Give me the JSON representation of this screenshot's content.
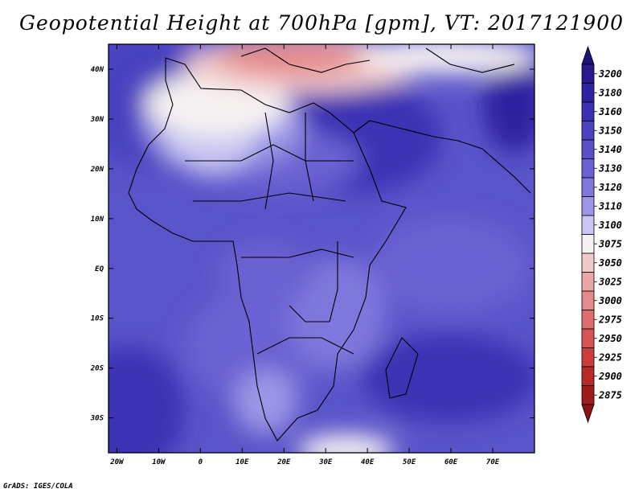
{
  "title": "Geopotential Height at 700hPa [gpm], VT: 2017121900",
  "credit": "GrADS: IGES/COLA",
  "map": {
    "lon_range": [
      -22,
      80
    ],
    "lat_range": [
      -37,
      45
    ],
    "lon_ticks": [
      "20W",
      "10W",
      "0",
      "10E",
      "20E",
      "30E",
      "40E",
      "50E",
      "60E",
      "70E"
    ],
    "lon_tick_values": [
      -20,
      -10,
      0,
      10,
      20,
      30,
      40,
      50,
      60,
      70
    ],
    "lat_ticks": [
      "40N",
      "30N",
      "20N",
      "10N",
      "EQ",
      "10S",
      "20S",
      "30S"
    ],
    "lat_tick_values": [
      40,
      30,
      20,
      10,
      0,
      -10,
      -20,
      -30
    ]
  },
  "colorbar": {
    "levels": [
      "3200",
      "3180",
      "3160",
      "3150",
      "3140",
      "3130",
      "3120",
      "3110",
      "3100",
      "3075",
      "3050",
      "3025",
      "3000",
      "2975",
      "2950",
      "2925",
      "2900",
      "2875"
    ],
    "colors": [
      "#261a8c",
      "#2e23a0",
      "#3a30b4",
      "#4a42c0",
      "#5750c8",
      "#6a62d2",
      "#7f78dc",
      "#9b96e6",
      "#c8c6f2",
      "#f6f2f2",
      "#f2c9c9",
      "#eba6a6",
      "#e48a8a",
      "#dd6e6e",
      "#d65454",
      "#cc3c3c",
      "#b82a2a",
      "#9e1c1c"
    ],
    "top_color": "#1c137a",
    "bottom_color": "#8a1414"
  }
}
